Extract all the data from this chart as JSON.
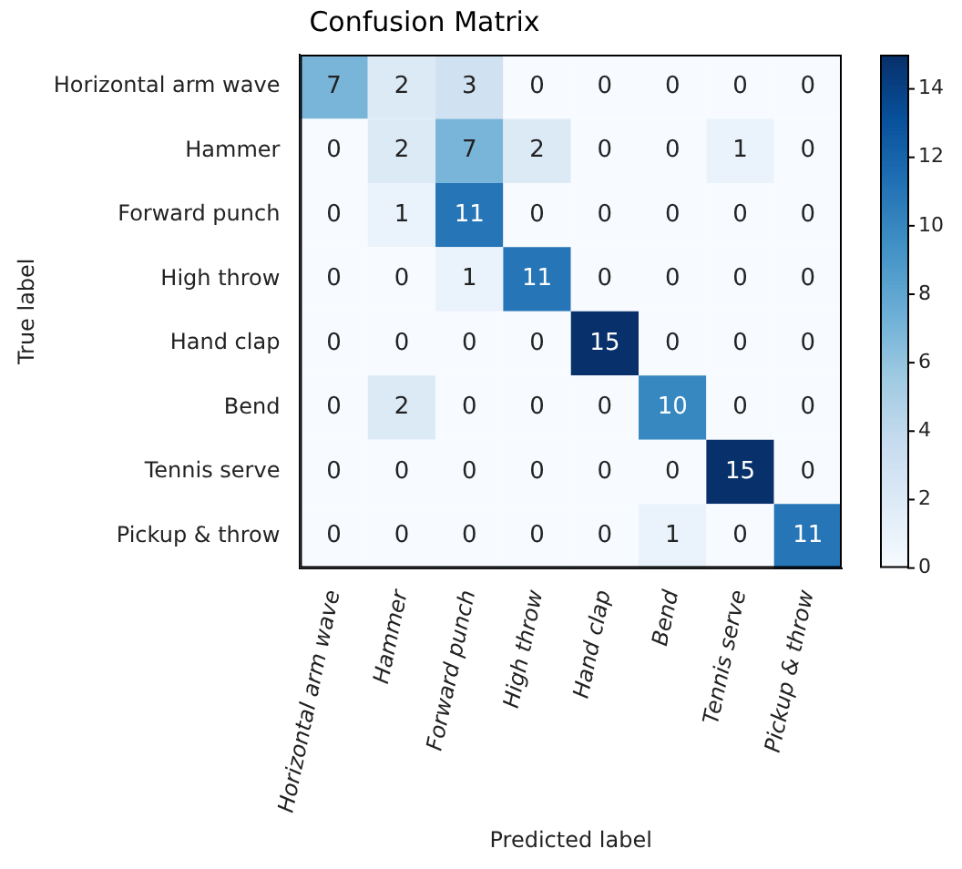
{
  "chart_data": {
    "type": "heatmap",
    "title": "Confusion Matrix",
    "xlabel": "Predicted label",
    "ylabel": "True label",
    "categories": [
      "Horizontal arm wave",
      "Hammer",
      "Forward punch",
      "High throw",
      "Hand clap",
      "Bend",
      "Tennis serve",
      "Pickup & throw"
    ],
    "y_categories": [
      "Horizontal arm wave",
      "Hammer",
      "Forward punch",
      "High throw",
      "Hand clap",
      "Bend",
      "Tennis serve",
      "Pickup & throw"
    ],
    "cells": [
      [
        7,
        2,
        3,
        0,
        0,
        0,
        0,
        0
      ],
      [
        0,
        2,
        7,
        2,
        0,
        0,
        1,
        0
      ],
      [
        0,
        1,
        11,
        0,
        0,
        0,
        0,
        0
      ],
      [
        0,
        0,
        1,
        11,
        0,
        0,
        0,
        0
      ],
      [
        0,
        0,
        0,
        0,
        15,
        0,
        0,
        0
      ],
      [
        0,
        2,
        0,
        0,
        0,
        10,
        0,
        0
      ],
      [
        0,
        0,
        0,
        0,
        0,
        0,
        15,
        0
      ],
      [
        0,
        0,
        0,
        0,
        0,
        1,
        0,
        11
      ]
    ],
    "clim": [
      0,
      15
    ],
    "cticks": [
      0,
      2,
      4,
      6,
      8,
      10,
      12,
      14
    ],
    "data_labels": true,
    "grid": false,
    "legend": false
  }
}
